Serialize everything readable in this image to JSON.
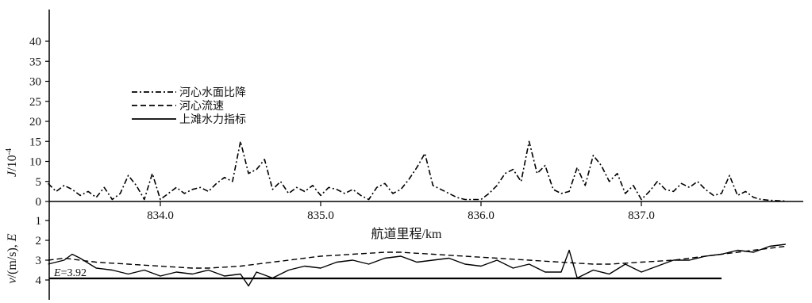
{
  "chart_data": {
    "type": "line",
    "xlabel": "航道里程/km",
    "xticks": [
      "834.0",
      "835.0",
      "836.0",
      "837.0"
    ],
    "xtick_values": [
      834.0,
      835.0,
      836.0,
      837.0
    ],
    "xlim": [
      833.3,
      837.9
    ],
    "legend": {
      "placement": "upper-left",
      "entries": [
        {
          "label": "河心水面比降",
          "style": "dash-dot"
        },
        {
          "label": "河心流速",
          "style": "dashed"
        },
        {
          "label": "上滩水力指标",
          "style": "solid"
        }
      ]
    },
    "panels": [
      {
        "name": "upper",
        "ylabel": "J/10⁻⁴",
        "ylabel_main": "J",
        "ylabel_unit": "/10",
        "ylabel_sup": "-4",
        "ylim": [
          0,
          45
        ],
        "yticks": [
          "0",
          "5",
          "10",
          "15",
          "20",
          "25",
          "30",
          "35",
          "40"
        ],
        "ytick_values": [
          0,
          5,
          10,
          15,
          20,
          25,
          30,
          35,
          40
        ],
        "series": [
          {
            "name": "河心水面比降",
            "x": [
              833.3,
              833.35,
              833.4,
              833.45,
              833.5,
              833.55,
              833.6,
              833.65,
              833.7,
              833.75,
              833.8,
              833.85,
              833.9,
              833.95,
              834.0,
              834.05,
              834.1,
              834.15,
              834.2,
              834.25,
              834.3,
              834.35,
              834.4,
              834.45,
              834.5,
              834.55,
              834.6,
              834.65,
              834.7,
              834.75,
              834.8,
              834.85,
              834.9,
              834.95,
              835.0,
              835.05,
              835.1,
              835.15,
              835.2,
              835.25,
              835.3,
              835.35,
              835.4,
              835.45,
              835.5,
              835.55,
              835.6,
              835.65,
              835.7,
              835.75,
              835.8,
              835.85,
              835.9,
              835.95,
              836.0,
              836.05,
              836.1,
              836.15,
              836.2,
              836.25,
              836.3,
              836.35,
              836.4,
              836.45,
              836.5,
              836.55,
              836.6,
              836.65,
              836.7,
              836.75,
              836.8,
              836.85,
              836.9,
              836.95,
              837.0,
              837.05,
              837.1,
              837.15,
              837.2,
              837.25,
              837.3,
              837.35,
              837.4,
              837.45,
              837.5,
              837.55,
              837.6,
              837.65,
              837.7,
              837.75,
              837.8,
              837.85,
              837.9
            ],
            "y": [
              4.5,
              2.5,
              4.0,
              3.0,
              1.5,
              2.5,
              1.0,
              3.5,
              0.5,
              2.0,
              6.5,
              4.0,
              0.5,
              7.0,
              0.5,
              2.0,
              3.5,
              2.0,
              3.0,
              3.5,
              2.5,
              4.5,
              6.0,
              5.0,
              15.0,
              7.0,
              8.0,
              10.5,
              3.0,
              5.0,
              2.0,
              3.5,
              2.5,
              4.0,
              1.5,
              3.5,
              3.0,
              2.0,
              3.0,
              1.5,
              0.5,
              3.5,
              4.5,
              2.0,
              3.0,
              5.5,
              8.5,
              12.0,
              4.0,
              3.0,
              2.0,
              1.0,
              0.5,
              0.5,
              0.5,
              2.0,
              4.0,
              7.0,
              8.0,
              5.0,
              15.0,
              7.0,
              9.0,
              3.0,
              2.0,
              2.5,
              8.5,
              4.0,
              11.5,
              9.0,
              5.0,
              7.0,
              2.0,
              4.0,
              0.5,
              2.5,
              5.0,
              3.0,
              2.5,
              4.5,
              3.5,
              5.0,
              3.0,
              1.5,
              2.0,
              6.5,
              1.5,
              2.5,
              1.0,
              0.5,
              0.3,
              0.2,
              0.1
            ]
          }
        ]
      },
      {
        "name": "lower",
        "ylabel": "v/(m/s), E",
        "ylabel_main": "v",
        "ylabel_rest": "/(m/s), ",
        "ylabel_var": "E",
        "ylim_inverted": [
          0,
          4
        ],
        "yticks": [
          "1",
          "2",
          "3",
          "4"
        ],
        "ytick_values": [
          1,
          2,
          3,
          4
        ],
        "reference_line": {
          "value": 3.92,
          "label": "E=3.92",
          "x_end": 837.5
        },
        "series": [
          {
            "name": "河心流速",
            "x": [
              833.3,
              833.4,
              833.5,
              833.6,
              833.7,
              833.8,
              833.9,
              834.0,
              834.1,
              834.2,
              834.3,
              834.4,
              834.5,
              834.6,
              834.7,
              834.8,
              834.9,
              835.0,
              835.1,
              835.2,
              835.3,
              835.4,
              835.5,
              835.6,
              835.7,
              835.8,
              835.9,
              836.0,
              836.1,
              836.2,
              836.3,
              836.4,
              836.5,
              836.6,
              836.7,
              836.8,
              836.9,
              837.0,
              837.1,
              837.2,
              837.3,
              837.4,
              837.5,
              837.6,
              837.7,
              837.8,
              837.9
            ],
            "y": [
              3.0,
              2.9,
              3.0,
              3.1,
              3.15,
              3.2,
              3.25,
              3.3,
              3.35,
              3.4,
              3.4,
              3.35,
              3.3,
              3.2,
              3.1,
              3.0,
              2.9,
              2.8,
              2.75,
              2.7,
              2.65,
              2.6,
              2.6,
              2.65,
              2.7,
              2.75,
              2.8,
              2.85,
              2.9,
              2.95,
              3.0,
              3.05,
              3.1,
              3.15,
              3.2,
              3.2,
              3.15,
              3.1,
              3.05,
              3.0,
              2.9,
              2.8,
              2.7,
              2.6,
              2.5,
              2.4,
              2.3
            ]
          },
          {
            "name": "上滩水力指标",
            "x": [
              833.3,
              833.4,
              833.45,
              833.5,
              833.6,
              833.7,
              833.8,
              833.9,
              834.0,
              834.1,
              834.2,
              834.3,
              834.4,
              834.5,
              834.55,
              834.6,
              834.7,
              834.8,
              834.9,
              835.0,
              835.1,
              835.2,
              835.3,
              835.4,
              835.5,
              835.6,
              835.7,
              835.8,
              835.9,
              836.0,
              836.1,
              836.2,
              836.3,
              836.4,
              836.5,
              836.55,
              836.6,
              836.7,
              836.8,
              836.9,
              837.0,
              837.1,
              837.2,
              837.3,
              837.4,
              837.5,
              837.6,
              837.7,
              837.8,
              837.9
            ],
            "y": [
              3.2,
              3.0,
              2.7,
              2.9,
              3.4,
              3.5,
              3.7,
              3.5,
              3.8,
              3.6,
              3.7,
              3.5,
              3.8,
              3.7,
              4.3,
              3.6,
              3.9,
              3.5,
              3.3,
              3.4,
              3.1,
              3.0,
              3.2,
              2.9,
              2.8,
              3.1,
              3.0,
              2.9,
              3.2,
              3.3,
              3.0,
              3.4,
              3.2,
              3.6,
              3.6,
              2.5,
              3.9,
              3.5,
              3.7,
              3.2,
              3.6,
              3.3,
              3.0,
              3.0,
              2.8,
              2.7,
              2.5,
              2.6,
              2.3,
              2.2
            ]
          }
        ]
      }
    ]
  }
}
